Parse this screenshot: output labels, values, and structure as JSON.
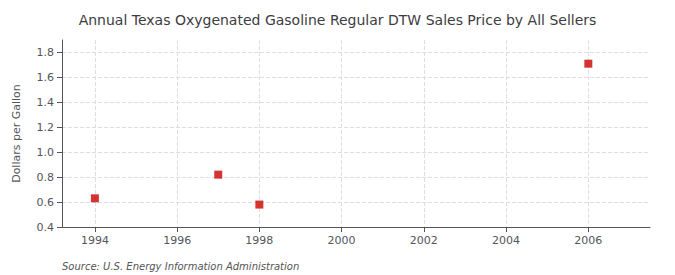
{
  "chart_data": {
    "type": "scatter",
    "title": "Annual Texas Oxygenated Gasoline Regular DTW Sales Price by All Sellers",
    "ylabel": "Dollars per Gallon",
    "annotation": "Source: U.S. Energy Information Administration",
    "x": [
      1994,
      1997,
      1998,
      2006
    ],
    "values": [
      0.63,
      0.82,
      0.58,
      1.71
    ],
    "color": "#cc0000",
    "marker": "square",
    "xlim": [
      1993.2,
      2007.5
    ],
    "xticks": [
      1994,
      1996,
      1998,
      2000,
      2002,
      2004,
      2006
    ],
    "ylim": [
      0.4,
      1.9
    ],
    "yticks": [
      0.4,
      0.6,
      0.8,
      {
        "value": 1.0,
        "label": "1.0"
      },
      1.2,
      1.4,
      1.6,
      1.8
    ],
    "grid": true
  }
}
